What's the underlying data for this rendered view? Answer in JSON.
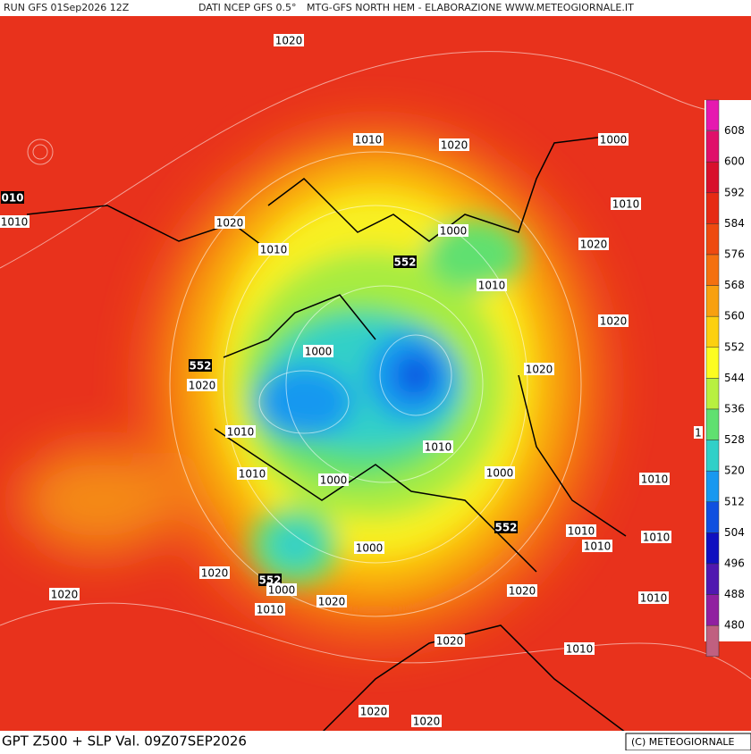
{
  "header": {
    "run": "RUN GFS 01Sep2026 12Z",
    "source": "DATI NCEP GFS 0.5°",
    "credit": "MTG-GFS NORTH HEM - ELABORAZIONE WWW.METEOGIORNALE.IT"
  },
  "footer": {
    "title": "GPT Z500 + SLP Val. 09Z07SEP2026",
    "copyright": "(C) METEOGIORNALE"
  },
  "legend": {
    "labels": [
      "608",
      "600",
      "592",
      "584",
      "576",
      "568",
      "560",
      "552",
      "544",
      "536",
      "528",
      "520",
      "512",
      "504",
      "496",
      "488",
      "480"
    ],
    "colors": [
      "#e619b0",
      "#e0106a",
      "#d8102c",
      "#e62a14",
      "#ee4a10",
      "#f47010",
      "#f8a010",
      "#fcd010",
      "#fcfc20",
      "#b8f040",
      "#60e070",
      "#30d0c8",
      "#1898f0",
      "#1050e0",
      "#1010c0",
      "#5018b0",
      "#9020a0",
      "#c06080"
    ]
  },
  "contour_labels": [
    "1020",
    "1010",
    "1020",
    "1000",
    "010",
    "1010",
    "1020",
    "1010",
    "1010",
    "1000",
    "552",
    "1020",
    "1010",
    "1020",
    "1000",
    "552",
    "1020",
    "1020",
    "1010",
    "1010",
    "1",
    "1010",
    "1000",
    "1000",
    "1010",
    "552",
    "1010",
    "1010",
    "1010",
    "1000",
    "1020",
    "552",
    "1000",
    "1020",
    "1020",
    "1020",
    "1010",
    "1010",
    "1020",
    "1010",
    "1020",
    "1020"
  ]
}
